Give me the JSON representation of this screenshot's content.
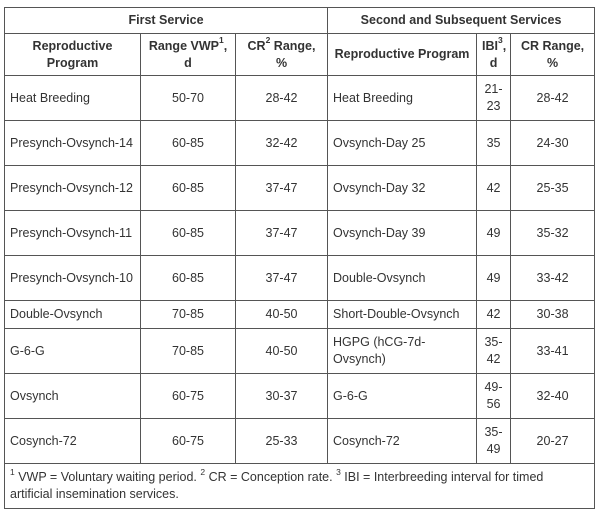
{
  "table": {
    "group_headers": {
      "first": "First Service",
      "second": "Second and Subsequent Services"
    },
    "columns": {
      "program1": "Reproductive Program",
      "vwp": "Range VWP",
      "vwp_sup": "1",
      "vwp_unit": ", d",
      "cr1": "CR",
      "cr1_sup": "2",
      "cr1_unit": " Range, %",
      "program2": "Reproductive Program",
      "ibi": "IBI",
      "ibi_sup": "3",
      "ibi_unit": ", d",
      "cr2": "CR Range, %"
    },
    "rows": [
      {
        "p1": "Heat Breeding",
        "vwp": "50-70",
        "cr1": "28-42",
        "p2": "Heat Breeding",
        "ibi": "21-23",
        "cr2": "28-42"
      },
      {
        "p1": "Presynch-Ovsynch-14",
        "vwp": "60-85",
        "cr1": "32-42",
        "p2": "Ovsynch-Day 25",
        "ibi": "35",
        "cr2": "24-30"
      },
      {
        "p1": "Presynch-Ovsynch-12",
        "vwp": "60-85",
        "cr1": "37-47",
        "p2": "Ovsynch-Day 32",
        "ibi": "42",
        "cr2": "25-35"
      },
      {
        "p1": "Presynch-Ovsynch-11",
        "vwp": "60-85",
        "cr1": "37-47",
        "p2": "Ovsynch-Day 39",
        "ibi": "49",
        "cr2": "35-32"
      },
      {
        "p1": "Presynch-Ovsynch-10",
        "vwp": "60-85",
        "cr1": "37-47",
        "p2": "Double-Ovsynch",
        "ibi": "49",
        "cr2": "33-42"
      },
      {
        "p1": "Double-Ovsynch",
        "vwp": "70-85",
        "cr1": "40-50",
        "p2": "Short-Double-Ovsynch",
        "ibi": "42",
        "cr2": "30-38"
      },
      {
        "p1": "G-6-G",
        "vwp": "70-85",
        "cr1": "40-50",
        "p2": "HGPG (hCG-7d-Ovsynch)",
        "ibi": "35-42",
        "cr2": "33-41"
      },
      {
        "p1": "Ovsynch",
        "vwp": "60-75",
        "cr1": "30-37",
        "p2": "G-6-G",
        "ibi": "49-56",
        "cr2": "32-40"
      },
      {
        "p1": "Cosynch-72",
        "vwp": "60-75",
        "cr1": "25-33",
        "p2": "Cosynch-72",
        "ibi": "35-49",
        "cr2": "20-27"
      }
    ],
    "footnote": {
      "sup1": "1",
      "text1": " VWP = Voluntary waiting period. ",
      "sup2": "2",
      "text2": " CR = Conception rate. ",
      "sup3": "3",
      "text3": " IBI = Interbreeding interval for timed artificial insemination services."
    }
  }
}
